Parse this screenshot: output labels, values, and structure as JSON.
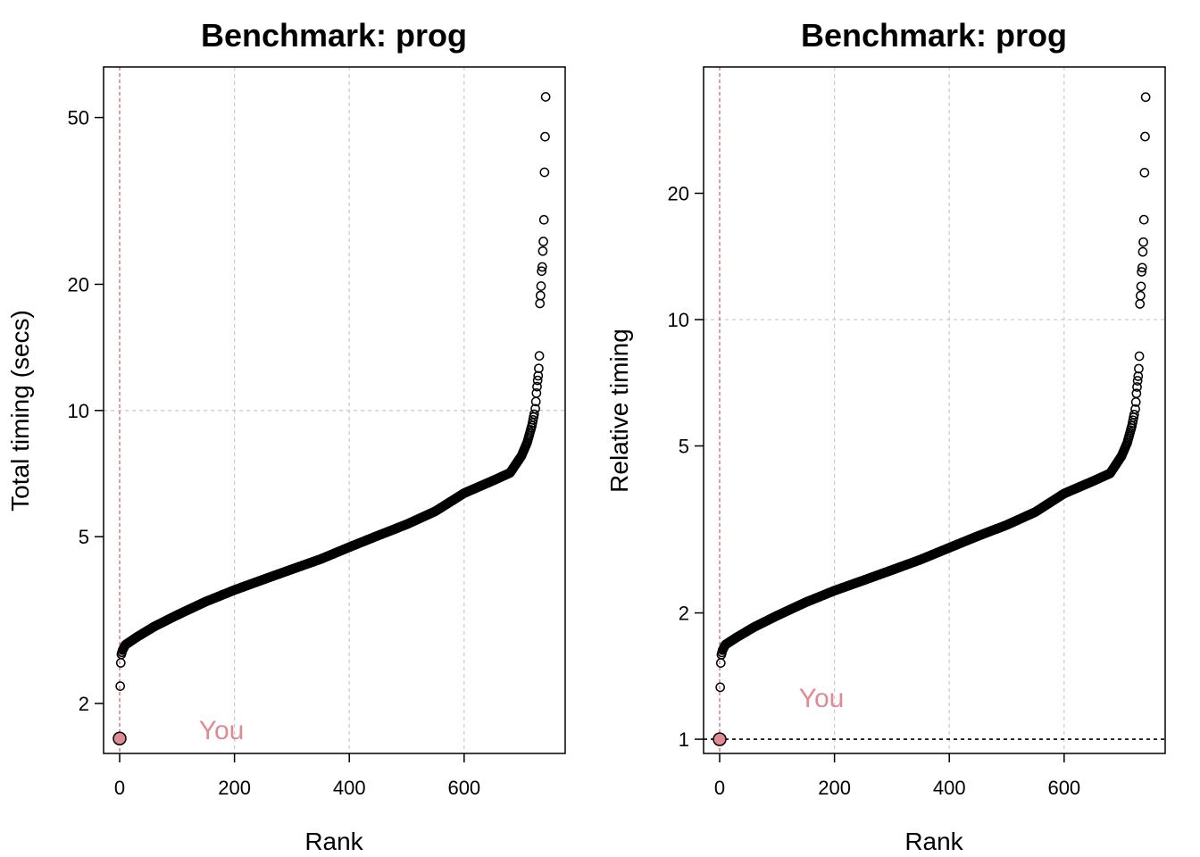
{
  "colors": {
    "highlight": "#E08A94",
    "highlight_line": "#D9707E",
    "point_stroke": "#000000",
    "grid": "#CCCCCC"
  },
  "chart_data": [
    {
      "type": "scatter",
      "title": "Benchmark: prog",
      "xlabel": "Rank",
      "ylabel": "Total timing (secs)",
      "y_scale": "log",
      "xlim": [
        -28,
        776
      ],
      "ylim": [
        1.52,
        66
      ],
      "xticks": [
        0,
        200,
        400,
        600
      ],
      "yticks": [
        2,
        5,
        10,
        20,
        50
      ],
      "xtick_labels": [
        "0",
        "200",
        "400",
        "600"
      ],
      "ytick_labels": [
        "2",
        "5",
        "10",
        "20",
        "50"
      ],
      "grid": {
        "x": [
          200,
          400,
          600
        ],
        "y": [
          10
        ]
      },
      "highlight_rank": 0,
      "highlight_label": "You",
      "highlight_point": {
        "x": 0,
        "y": 1.65
      },
      "reference_line_y": null,
      "profile": [
        [
          1,
          2.2
        ],
        [
          2,
          2.5
        ],
        [
          3,
          2.62
        ],
        [
          5,
          2.68
        ],
        [
          10,
          2.76
        ],
        [
          30,
          2.88
        ],
        [
          60,
          3.05
        ],
        [
          100,
          3.25
        ],
        [
          150,
          3.5
        ],
        [
          200,
          3.73
        ],
        [
          250,
          3.95
        ],
        [
          300,
          4.18
        ],
        [
          350,
          4.42
        ],
        [
          400,
          4.72
        ],
        [
          450,
          5.03
        ],
        [
          500,
          5.35
        ],
        [
          550,
          5.75
        ],
        [
          600,
          6.35
        ],
        [
          650,
          6.8
        ],
        [
          680,
          7.1
        ],
        [
          700,
          7.8
        ],
        [
          710,
          8.4
        ],
        [
          718,
          9.2
        ],
        [
          722,
          9.8
        ]
      ],
      "outliers": [
        [
          724,
          10.1
        ],
        [
          725,
          10.5
        ],
        [
          726,
          11.0
        ],
        [
          727,
          11.4
        ],
        [
          728,
          11.8
        ],
        [
          729,
          12.1
        ],
        [
          730,
          12.6
        ],
        [
          731,
          13.5
        ],
        [
          732,
          18.0
        ],
        [
          733,
          18.8
        ],
        [
          734,
          19.8
        ],
        [
          735,
          21.5
        ],
        [
          736,
          22.0
        ],
        [
          737,
          24.0
        ],
        [
          738,
          25.3
        ],
        [
          739,
          28.5
        ],
        [
          740,
          37.0
        ],
        [
          741,
          45.0
        ],
        [
          742,
          56.0
        ]
      ]
    },
    {
      "type": "scatter",
      "title": "Benchmark: prog",
      "xlabel": "Rank",
      "ylabel": "Relative timing",
      "y_scale": "log",
      "xlim": [
        -28,
        776
      ],
      "ylim": [
        0.925,
        40
      ],
      "xticks": [
        0,
        200,
        400,
        600
      ],
      "yticks": [
        1,
        2,
        5,
        10,
        20
      ],
      "xtick_labels": [
        "0",
        "200",
        "400",
        "600"
      ],
      "ytick_labels": [
        "1",
        "2",
        "5",
        "10",
        "20"
      ],
      "grid": {
        "x": [
          200,
          400,
          600
        ],
        "y": [
          10
        ]
      },
      "highlight_rank": 0,
      "highlight_label": "You",
      "highlight_point": {
        "x": 0,
        "y": 1.0
      },
      "reference_line_y": 1,
      "profile": [
        [
          1,
          1.33
        ],
        [
          2,
          1.52
        ],
        [
          3,
          1.59
        ],
        [
          5,
          1.63
        ],
        [
          10,
          1.68
        ],
        [
          30,
          1.75
        ],
        [
          60,
          1.85
        ],
        [
          100,
          1.97
        ],
        [
          150,
          2.12
        ],
        [
          200,
          2.26
        ],
        [
          250,
          2.39
        ],
        [
          300,
          2.53
        ],
        [
          350,
          2.68
        ],
        [
          400,
          2.86
        ],
        [
          450,
          3.05
        ],
        [
          500,
          3.24
        ],
        [
          550,
          3.48
        ],
        [
          600,
          3.85
        ],
        [
          650,
          4.12
        ],
        [
          680,
          4.3
        ],
        [
          700,
          4.73
        ],
        [
          710,
          5.09
        ],
        [
          718,
          5.58
        ],
        [
          722,
          5.94
        ]
      ],
      "outliers": [
        [
          724,
          6.12
        ],
        [
          725,
          6.36
        ],
        [
          726,
          6.67
        ],
        [
          727,
          6.91
        ],
        [
          728,
          7.15
        ],
        [
          729,
          7.33
        ],
        [
          730,
          7.64
        ],
        [
          731,
          8.18
        ],
        [
          732,
          10.9
        ],
        [
          733,
          11.4
        ],
        [
          734,
          12.0
        ],
        [
          735,
          13.0
        ],
        [
          736,
          13.3
        ],
        [
          737,
          14.5
        ],
        [
          738,
          15.3
        ],
        [
          739,
          17.3
        ],
        [
          740,
          22.4
        ],
        [
          741,
          27.3
        ],
        [
          742,
          33.9
        ]
      ]
    }
  ]
}
